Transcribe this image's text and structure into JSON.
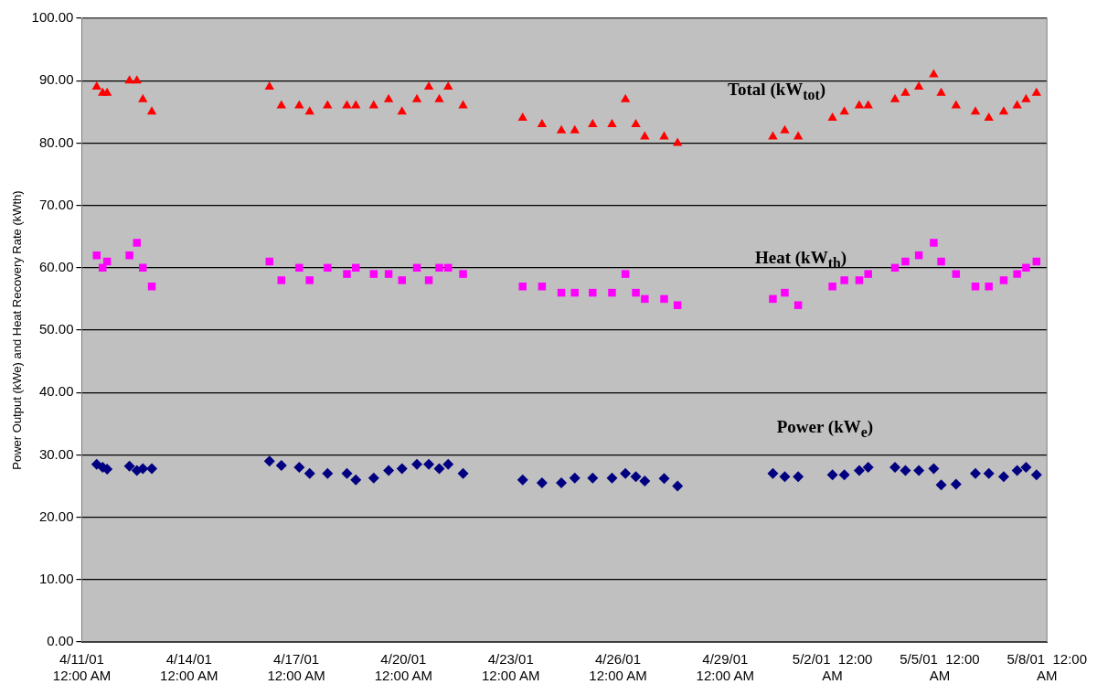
{
  "chart_data": {
    "type": "scatter",
    "ylabel": "Power Output (kWe) and Heat Recovery Rate (kWth)",
    "x": [
      "2001-04-11T10:00",
      "2001-04-11T14:00",
      "2001-04-11T17:00",
      "2001-04-12T08:00",
      "2001-04-12T13:00",
      "2001-04-12T17:00",
      "2001-04-12T23:00",
      "2001-04-16T06:00",
      "2001-04-16T14:00",
      "2001-04-17T02:00",
      "2001-04-17T09:00",
      "2001-04-17T21:00",
      "2001-04-18T10:00",
      "2001-04-18T16:00",
      "2001-04-19T04:00",
      "2001-04-19T14:00",
      "2001-04-19T23:00",
      "2001-04-20T09:00",
      "2001-04-20T17:00",
      "2001-04-21T00:00",
      "2001-04-21T06:00",
      "2001-04-21T16:00",
      "2001-04-23T08:00",
      "2001-04-23T21:00",
      "2001-04-24T10:00",
      "2001-04-24T19:00",
      "2001-04-25T07:00",
      "2001-04-25T20:00",
      "2001-04-26T05:00",
      "2001-04-26T12:00",
      "2001-04-26T18:00",
      "2001-04-27T07:00",
      "2001-04-27T16:00",
      "2001-04-30T08:00",
      "2001-04-30T16:00",
      "2001-05-01T01:00",
      "2001-05-02T00:00",
      "2001-05-02T08:00",
      "2001-05-02T18:00",
      "2001-05-03T00:00",
      "2001-05-03T18:00",
      "2001-05-04T01:00",
      "2001-05-04T10:00",
      "2001-05-04T20:00",
      "2001-05-05T01:00",
      "2001-05-05T11:00",
      "2001-05-06T00:00",
      "2001-05-06T09:00",
      "2001-05-06T19:00",
      "2001-05-07T04:00",
      "2001-05-07T10:00",
      "2001-05-07T17:00"
    ],
    "series": [
      {
        "name": "Total (kW$_{tot}$)",
        "color": "#ff0000",
        "marker": "triangle",
        "values": [
          89,
          88,
          88,
          90,
          90,
          87,
          85,
          89,
          86,
          86,
          85,
          86,
          86,
          86,
          86,
          87,
          85,
          87,
          89,
          87,
          89,
          86,
          84,
          83,
          82,
          82,
          83,
          83,
          87,
          83,
          81,
          81,
          80,
          81,
          82,
          81,
          84,
          85,
          86,
          86,
          87,
          88,
          89,
          91,
          88,
          86,
          85,
          84,
          85,
          86,
          87,
          88
        ]
      },
      {
        "name": "Heat (kW$_{th}$)",
        "color": "#ff00ff",
        "marker": "square",
        "values": [
          62,
          60,
          61,
          62,
          64,
          60,
          57,
          61,
          58,
          60,
          58,
          60,
          59,
          60,
          59,
          59,
          58,
          60,
          58,
          60,
          60,
          59,
          57,
          57,
          56,
          56,
          56,
          56,
          59,
          56,
          55,
          55,
          54,
          55,
          56,
          54,
          57,
          58,
          58,
          59,
          60,
          61,
          62,
          64,
          61,
          59,
          57,
          57,
          58,
          59,
          60,
          61
        ]
      },
      {
        "name": "Power (kW$_{e}$)",
        "color": "#000080",
        "marker": "diamond",
        "values": [
          28.5,
          28,
          27.7,
          28.2,
          27.5,
          27.8,
          27.8,
          29,
          28.3,
          28,
          27,
          27,
          27,
          26,
          26.3,
          27.5,
          27.8,
          28.5,
          28.5,
          27.8,
          28.5,
          27,
          26,
          25.5,
          25.5,
          26.3,
          26.3,
          26.3,
          27,
          26.5,
          25.8,
          26.2,
          25,
          27,
          26.5,
          26.5,
          26.8,
          26.8,
          27.5,
          28,
          28,
          27.5,
          27.5,
          27.8,
          25.2,
          25.3,
          27,
          27,
          26.5,
          27.5,
          28,
          26.8
        ]
      }
    ],
    "xlim": [
      "--04-11",
      "--05-08"
    ],
    "xticks": [
      {
        "value": "--04-11",
        "label": "4/11/01\n12:00 AM"
      },
      {
        "value": "--04-14",
        "label": "4/14/01\n12:00 AM"
      },
      {
        "value": "--04-17",
        "label": "4/17/01\n12:00 AM"
      },
      {
        "value": "--04-20",
        "label": "4/20/01\n12:00 AM"
      },
      {
        "value": "--04-23",
        "label": "4/23/01\n12:00 AM"
      },
      {
        "value": "--04-26",
        "label": "4/26/01\n12:00 AM"
      },
      {
        "value": "--04-29",
        "label": "4/29/01\n12:00 AM"
      },
      {
        "value": "--05-02",
        "label": "5/2/01  12:00\nAM"
      },
      {
        "value": "--05-05",
        "label": "5/5/01  12:00\nAM"
      },
      {
        "value": "--05-08",
        "label": "5/8/01  12:00\nAM"
      }
    ],
    "ylim": [
      0,
      100
    ],
    "yticks": [
      {
        "value": 0,
        "label": "0.00"
      },
      {
        "value": 10,
        "label": "10.00"
      },
      {
        "value": 20,
        "label": "20.00"
      },
      {
        "value": 30,
        "label": "30.00"
      },
      {
        "value": 40,
        "label": "40.00"
      },
      {
        "value": 50,
        "label": "50.00"
      },
      {
        "value": 60,
        "label": "60.00"
      },
      {
        "value": 70,
        "label": "70.00"
      },
      {
        "value": 80,
        "label": "80.00"
      },
      {
        "value": 90,
        "label": "90.00"
      },
      {
        "value": 100,
        "label": "100.00"
      }
    ],
    "grid": "y",
    "legend": false
  }
}
